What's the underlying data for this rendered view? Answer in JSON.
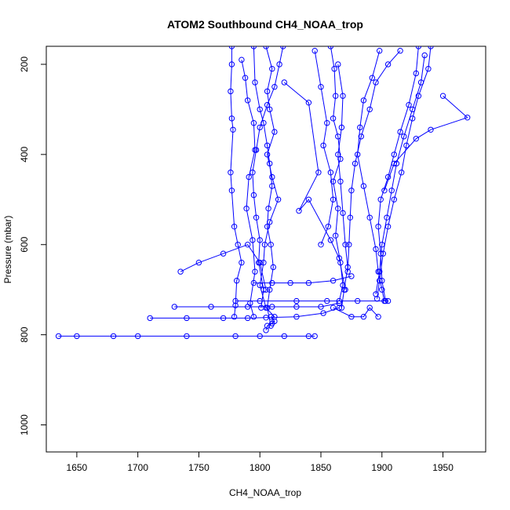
{
  "chart_data": {
    "type": "line",
    "title": "ATOM2 Southbound CH4_NOAA_trop",
    "xlabel": "CH4_NOAA_trop",
    "ylabel": "Pressure (mbar)",
    "xlim": [
      1625,
      1985
    ],
    "ylim": [
      1060,
      160
    ],
    "y_reversed": true,
    "grid": false,
    "x_ticks": [
      "1650",
      "1700",
      "1750",
      "1800",
      "1850",
      "1900",
      "1950"
    ],
    "y_ticks": [
      "200",
      "400",
      "600",
      "800",
      "1000"
    ],
    "colors": {
      "series": "#0000ff",
      "axis": "#000000"
    },
    "series": [
      {
        "values": [
          [
            1777,
            160
          ],
          [
            1777,
            200
          ],
          [
            1776,
            260
          ],
          [
            1777,
            320
          ],
          [
            1778,
            345
          ],
          [
            1776,
            440
          ],
          [
            1777,
            480
          ],
          [
            1779,
            560
          ],
          [
            1782,
            600
          ],
          [
            1785,
            640
          ],
          [
            1781,
            680
          ],
          [
            1780,
            735
          ],
          [
            1779,
            760
          ]
        ]
      },
      {
        "values": [
          [
            1795,
            160
          ],
          [
            1796,
            240
          ],
          [
            1800,
            300
          ],
          [
            1803,
            330
          ],
          [
            1806,
            380
          ],
          [
            1808,
            420
          ],
          [
            1810,
            470
          ],
          [
            1807,
            520
          ],
          [
            1806,
            560
          ],
          [
            1809,
            600
          ],
          [
            1811,
            650
          ],
          [
            1808,
            700
          ],
          [
            1806,
            740
          ],
          [
            1809,
            780
          ]
        ]
      },
      {
        "values": [
          [
            1805,
            160
          ],
          [
            1810,
            210
          ],
          [
            1806,
            260
          ],
          [
            1808,
            300
          ],
          [
            1812,
            350
          ],
          [
            1806,
            400
          ],
          [
            1810,
            450
          ],
          [
            1815,
            500
          ],
          [
            1808,
            550
          ],
          [
            1804,
            600
          ],
          [
            1803,
            640
          ],
          [
            1800,
            690
          ],
          [
            1805,
            740
          ],
          [
            1812,
            760
          ]
        ]
      },
      {
        "values": [
          [
            1819,
            160
          ],
          [
            1816,
            200
          ],
          [
            1812,
            250
          ],
          [
            1806,
            290
          ],
          [
            1800,
            340
          ],
          [
            1797,
            390
          ],
          [
            1794,
            440
          ],
          [
            1795,
            490
          ],
          [
            1797,
            540
          ],
          [
            1800,
            590
          ],
          [
            1799,
            640
          ],
          [
            1803,
            700
          ],
          [
            1801,
            740
          ]
        ]
      },
      {
        "values": [
          [
            1785,
            190
          ],
          [
            1788,
            230
          ],
          [
            1790,
            280
          ],
          [
            1795,
            330
          ],
          [
            1796,
            390
          ],
          [
            1791,
            450
          ],
          [
            1789,
            520
          ],
          [
            1794,
            590
          ],
          [
            1796,
            660
          ],
          [
            1792,
            730
          ],
          [
            1795,
            760
          ]
        ]
      },
      {
        "values": [
          [
            1858,
            160
          ],
          [
            1861,
            210
          ],
          [
            1862,
            270
          ],
          [
            1860,
            320
          ],
          [
            1864,
            360
          ],
          [
            1866,
            410
          ],
          [
            1860,
            460
          ],
          [
            1864,
            520
          ],
          [
            1862,
            580
          ],
          [
            1866,
            640
          ],
          [
            1868,
            690
          ],
          [
            1865,
            725
          ]
        ]
      },
      {
        "values": [
          [
            1864,
            200
          ],
          [
            1868,
            270
          ],
          [
            1867,
            340
          ],
          [
            1864,
            400
          ],
          [
            1866,
            460
          ],
          [
            1868,
            530
          ],
          [
            1870,
            600
          ],
          [
            1872,
            650
          ],
          [
            1869,
            700
          ],
          [
            1867,
            740
          ]
        ]
      },
      {
        "values": [
          [
            1845,
            170
          ],
          [
            1850,
            250
          ],
          [
            1855,
            330
          ],
          [
            1852,
            380
          ],
          [
            1858,
            440
          ],
          [
            1860,
            500
          ],
          [
            1856,
            560
          ],
          [
            1850,
            600
          ]
        ]
      },
      {
        "values": [
          [
            1898,
            170
          ],
          [
            1892,
            230
          ],
          [
            1885,
            280
          ],
          [
            1882,
            340
          ],
          [
            1880,
            400
          ],
          [
            1885,
            470
          ],
          [
            1890,
            540
          ],
          [
            1895,
            610
          ],
          [
            1897,
            660
          ],
          [
            1900,
            700
          ],
          [
            1902,
            725
          ]
        ]
      },
      {
        "values": [
          [
            1930,
            160
          ],
          [
            1928,
            220
          ],
          [
            1922,
            290
          ],
          [
            1915,
            350
          ],
          [
            1910,
            400
          ],
          [
            1905,
            450
          ],
          [
            1899,
            500
          ],
          [
            1897,
            560
          ],
          [
            1899,
            620
          ],
          [
            1900,
            680
          ],
          [
            1903,
            725
          ]
        ]
      },
      {
        "values": [
          [
            1940,
            160
          ],
          [
            1938,
            210
          ],
          [
            1930,
            270
          ],
          [
            1925,
            320
          ],
          [
            1920,
            380
          ],
          [
            1916,
            440
          ],
          [
            1910,
            500
          ],
          [
            1905,
            560
          ],
          [
            1901,
            620
          ],
          [
            1898,
            680
          ],
          [
            1896,
            720
          ]
        ]
      },
      {
        "values": [
          [
            1935,
            180
          ],
          [
            1932,
            240
          ],
          [
            1925,
            300
          ],
          [
            1918,
            360
          ],
          [
            1912,
            420
          ],
          [
            1908,
            480
          ],
          [
            1904,
            540
          ],
          [
            1900,
            600
          ],
          [
            1898,
            660
          ],
          [
            1895,
            710
          ]
        ]
      },
      {
        "values": [
          [
            1950,
            270
          ],
          [
            1970,
            318
          ],
          [
            1940,
            345
          ],
          [
            1928,
            365
          ],
          [
            1910,
            420
          ],
          [
            1902,
            480
          ]
        ]
      },
      {
        "values": [
          [
            1915,
            170
          ],
          [
            1905,
            200
          ],
          [
            1895,
            240
          ],
          [
            1890,
            300
          ],
          [
            1883,
            360
          ],
          [
            1878,
            420
          ],
          [
            1875,
            480
          ],
          [
            1874,
            540
          ],
          [
            1873,
            600
          ],
          [
            1872,
            660
          ]
        ]
      },
      {
        "values": [
          [
            1820,
            240
          ],
          [
            1840,
            285
          ],
          [
            1848,
            440
          ],
          [
            1832,
            525
          ],
          [
            1840,
            500
          ],
          [
            1858,
            590
          ],
          [
            1865,
            630
          ],
          [
            1870,
            700
          ]
        ]
      },
      {
        "values": [
          [
            1635,
            803
          ],
          [
            1650,
            803
          ],
          [
            1680,
            803
          ],
          [
            1700,
            803
          ],
          [
            1740,
            803
          ],
          [
            1780,
            803
          ],
          [
            1800,
            803
          ],
          [
            1820,
            803
          ],
          [
            1840,
            803
          ],
          [
            1845,
            803
          ]
        ]
      },
      {
        "values": [
          [
            1710,
            763
          ],
          [
            1740,
            763
          ],
          [
            1770,
            763
          ],
          [
            1790,
            763
          ],
          [
            1805,
            762
          ],
          [
            1830,
            760
          ],
          [
            1852,
            752
          ],
          [
            1865,
            740
          ]
        ]
      },
      {
        "values": [
          [
            1730,
            738
          ],
          [
            1760,
            738
          ],
          [
            1790,
            738
          ],
          [
            1810,
            738
          ],
          [
            1830,
            738
          ],
          [
            1850,
            738
          ],
          [
            1865,
            730
          ]
        ]
      },
      {
        "values": [
          [
            1780,
            725
          ],
          [
            1800,
            725
          ],
          [
            1830,
            725
          ],
          [
            1855,
            725
          ],
          [
            1880,
            725
          ],
          [
            1905,
            725
          ]
        ]
      },
      {
        "values": [
          [
            1795,
            685
          ],
          [
            1810,
            685
          ],
          [
            1825,
            685
          ],
          [
            1840,
            685
          ],
          [
            1860,
            680
          ],
          [
            1875,
            670
          ]
        ]
      },
      {
        "values": [
          [
            1735,
            660
          ],
          [
            1750,
            640
          ],
          [
            1770,
            620
          ],
          [
            1790,
            600
          ],
          [
            1800,
            640
          ],
          [
            1805,
            700
          ]
        ]
      },
      {
        "values": [
          [
            1860,
            740
          ],
          [
            1875,
            760
          ],
          [
            1885,
            760
          ],
          [
            1890,
            740
          ],
          [
            1897,
            760
          ]
        ]
      },
      {
        "values": [
          [
            1805,
            790
          ],
          [
            1806,
            780
          ],
          [
            1810,
            775
          ],
          [
            1812,
            770
          ],
          [
            1809,
            760
          ]
        ]
      }
    ]
  }
}
